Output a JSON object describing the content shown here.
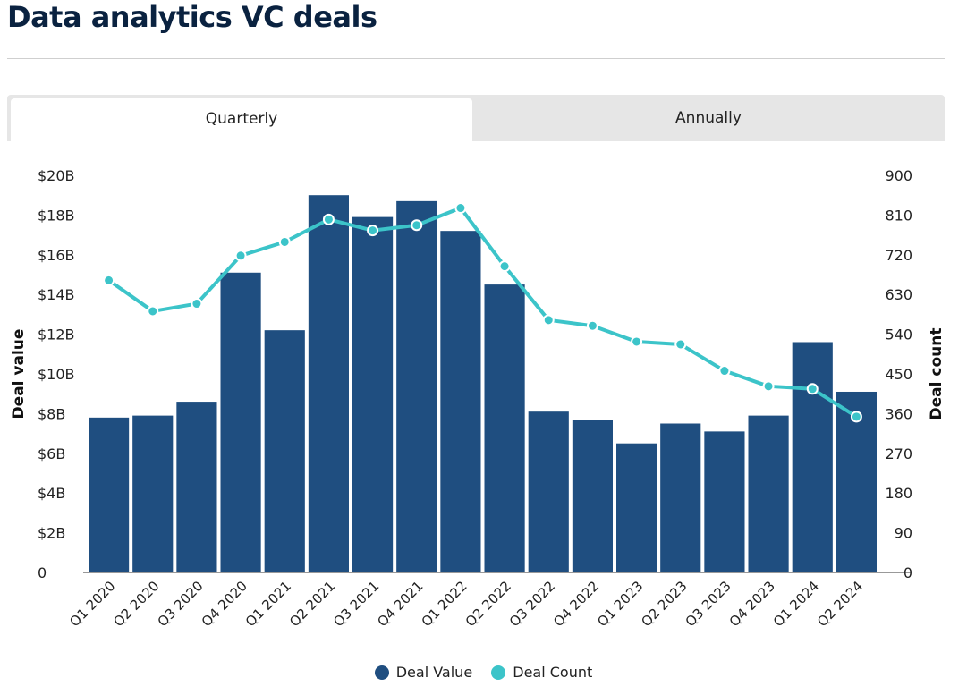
{
  "page": {
    "title": "Data analytics VC deals"
  },
  "tabs": [
    {
      "label": "Quarterly",
      "active": true
    },
    {
      "label": "Annually",
      "active": false
    }
  ],
  "colors": {
    "bar": "#1f4e80",
    "line": "#3cc4c9",
    "axis": "#222222",
    "title": "#0a2240"
  },
  "chart_data": {
    "type": "bar",
    "title": "",
    "categories": [
      "Q1 2020",
      "Q2 2020",
      "Q3 2020",
      "Q4 2020",
      "Q1 2021",
      "Q2 2021",
      "Q3 2021",
      "Q4 2021",
      "Q1 2022",
      "Q2 2022",
      "Q3 2022",
      "Q4 2022",
      "Q1 2023",
      "Q2 2023",
      "Q3 2023",
      "Q4 2023",
      "Q1 2024",
      "Q2 2024"
    ],
    "series": [
      {
        "name": "Deal Value",
        "type": "bar",
        "axis": "left",
        "values": [
          7.8,
          7.9,
          8.6,
          15.1,
          12.2,
          19.0,
          17.9,
          18.7,
          17.2,
          14.5,
          8.1,
          7.7,
          6.5,
          7.5,
          7.1,
          7.9,
          11.6,
          9.1
        ]
      },
      {
        "name": "Deal Count",
        "type": "line",
        "axis": "right",
        "values": [
          662,
          592,
          609,
          718,
          749,
          800,
          775,
          787,
          826,
          694,
          572,
          559,
          523,
          517,
          457,
          422,
          416,
          353
        ]
      }
    ],
    "y_left": {
      "label": "Deal value",
      "min": 0,
      "max": 20,
      "ticks": [
        "0",
        "$2B",
        "$4B",
        "$6B",
        "$8B",
        "$10B",
        "$12B",
        "$14B",
        "$16B",
        "$18B",
        "$20B"
      ]
    },
    "y_right": {
      "label": "Deal count",
      "min": 0,
      "max": 900,
      "ticks": [
        "0",
        "90",
        "180",
        "270",
        "360",
        "450",
        "540",
        "630",
        "720",
        "810",
        "900"
      ]
    },
    "legend": [
      {
        "label": "Deal Value",
        "color": "#1f4e80"
      },
      {
        "label": "Deal Count",
        "color": "#3cc4c9"
      }
    ],
    "legend_position": "bottom",
    "grid": false
  }
}
